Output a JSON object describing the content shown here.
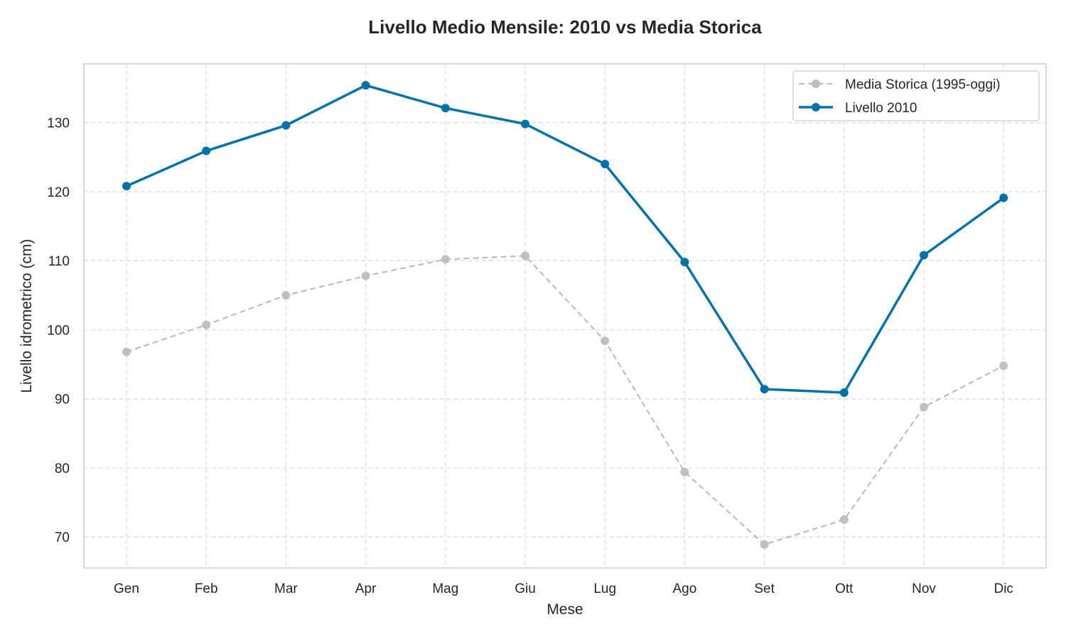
{
  "chart_data": {
    "type": "line",
    "title": "Livello Medio Mensile: 2010 vs Media Storica",
    "xlabel": "Mese",
    "ylabel": "Livello idrometrico (cm)",
    "categories": [
      "Gen",
      "Feb",
      "Mar",
      "Apr",
      "Mag",
      "Giu",
      "Lug",
      "Ago",
      "Set",
      "Ott",
      "Nov",
      "Dic"
    ],
    "ylim": [
      65.5,
      138.5
    ],
    "yticks": [
      70,
      80,
      90,
      100,
      110,
      120,
      130
    ],
    "grid": true,
    "legend_position": "top-right",
    "series": [
      {
        "name": "Media Storica (1995-oggi)",
        "style": "dashed",
        "color": "#bdbdbd",
        "values": [
          96.8,
          100.7,
          105.0,
          107.8,
          110.2,
          110.7,
          98.4,
          79.4,
          68.9,
          72.5,
          88.8,
          94.8
        ]
      },
      {
        "name": "Livello 2010",
        "style": "solid",
        "color": "#0072a8",
        "values": [
          120.8,
          125.9,
          129.6,
          135.4,
          132.1,
          129.8,
          124.0,
          109.8,
          91.4,
          90.9,
          110.8,
          119.1
        ]
      }
    ]
  }
}
